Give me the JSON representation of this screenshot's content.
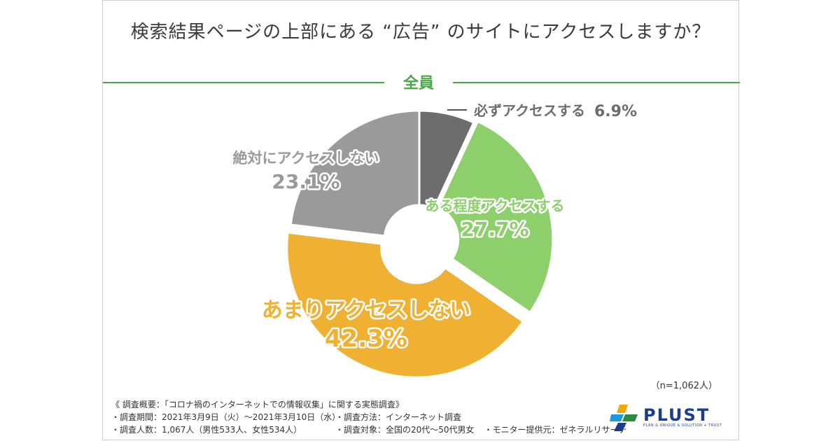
{
  "title": "検索結果ページの上部にある “広告” のサイトにアクセスしますか？",
  "group_label": "全員",
  "sample_size": "（n=1,062人）",
  "chart_data": {
    "type": "pie",
    "donut": true,
    "slices": [
      {
        "label": "必ずアクセスする",
        "value": 6.9,
        "value_text": "6.9%",
        "color": "#6d6d6d"
      },
      {
        "label": "ある程度アクセスする",
        "value": 27.7,
        "value_text": "27.7%",
        "color": "#8ccf6b"
      },
      {
        "label": "あまりアクセスしない",
        "value": 42.3,
        "value_text": "42.3%",
        "color": "#f0b133"
      },
      {
        "label": "絶対にアクセスしない",
        "value": 23.1,
        "value_text": "23.1%",
        "color": "#9a9a9a"
      }
    ]
  },
  "notes": {
    "header": "《 調査概要：「コロナ禍のインターネットでの情報収集」に関する実態調査》",
    "items": [
      "・調査期間：2021年3月9日（火）〜2021年3月10日（水）",
      "・調査方法：インターネット調査",
      "・調査人数：1,067人（男性533人、女性534人）",
      "・調査対象：全国の20代〜50代男女",
      "・モニター提供元：ゼネラルリサーチ"
    ]
  },
  "logo": {
    "word": "PLUST",
    "tagline": "PLAN & UNIQUE & SOLUTION + TRUST"
  }
}
